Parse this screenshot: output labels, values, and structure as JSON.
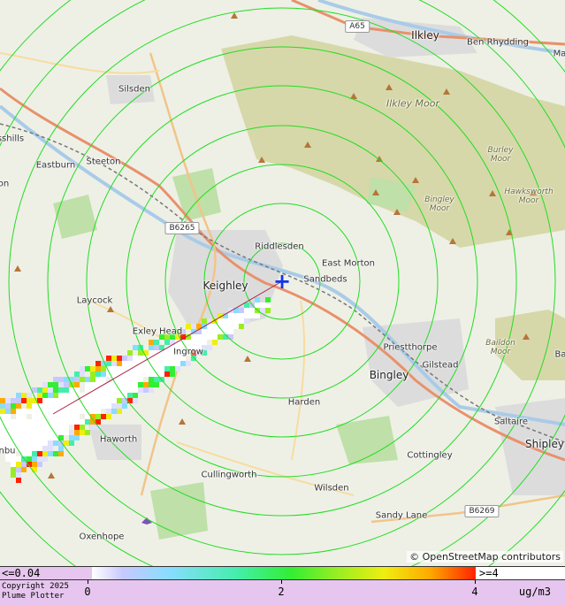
{
  "map": {
    "source_marker": "+",
    "places": [
      {
        "name": "Ilkley",
        "kind": "town"
      },
      {
        "name": "Ben Rhydding",
        "kind": "village"
      },
      {
        "name": "Silsden",
        "kind": "village"
      },
      {
        "name": "Eastburn",
        "kind": "village"
      },
      {
        "name": "Steeton",
        "kind": "village"
      },
      {
        "name": "Riddlesden",
        "kind": "village"
      },
      {
        "name": "East Morton",
        "kind": "village"
      },
      {
        "name": "Keighley",
        "kind": "town"
      },
      {
        "name": "Sandbeds",
        "kind": "village"
      },
      {
        "name": "Laycock",
        "kind": "village"
      },
      {
        "name": "Exley Head",
        "kind": "village"
      },
      {
        "name": "Ingrow",
        "kind": "village"
      },
      {
        "name": "Priestthorpe",
        "kind": "village"
      },
      {
        "name": "Gilstead",
        "kind": "village"
      },
      {
        "name": "Bingley",
        "kind": "town"
      },
      {
        "name": "Harden",
        "kind": "village"
      },
      {
        "name": "Haworth",
        "kind": "village"
      },
      {
        "name": "Saltaire",
        "kind": "village"
      },
      {
        "name": "Shipley",
        "kind": "town"
      },
      {
        "name": "Cottingley",
        "kind": "village"
      },
      {
        "name": "Cullingworth",
        "kind": "village"
      },
      {
        "name": "Wilsden",
        "kind": "village"
      },
      {
        "name": "Sandy Lane",
        "kind": "village"
      },
      {
        "name": "Oxenhope",
        "kind": "village"
      },
      {
        "name": "sshills",
        "kind": "village"
      },
      {
        "name": "Ma",
        "kind": "village"
      },
      {
        "name": "Ba",
        "kind": "village"
      },
      {
        "name": "on",
        "kind": "village"
      },
      {
        "name": "nbu",
        "kind": "village"
      }
    ],
    "moors": [
      {
        "name": "Ilkley Moor"
      },
      {
        "name": "Burley\nMoor"
      },
      {
        "name": "Hawksworth\nMoor"
      },
      {
        "name": "Bingley\nMoor"
      },
      {
        "name": "Baildon\nMoor"
      }
    ],
    "roads": [
      "A65",
      "B6265",
      "B6269"
    ],
    "attribution": "© OpenStreetMap contributors",
    "colors": {
      "ring": "#22dd22",
      "source": "#1133ee",
      "motorway": "#e8916b",
      "moorland": "#c9cc8a",
      "urban": "#d8d8d8",
      "plume_low": "#c8c8ff",
      "plume_mid": "#33ee33",
      "plume_high": "#ff2200"
    }
  },
  "legend": {
    "min_label": "<=0.04",
    "max_label": ">=4",
    "ticks": [
      "0",
      "2",
      "4"
    ],
    "units": "ug/m3",
    "copyright_line1": "Copyright 2025",
    "copyright_line2": "Plume Plotter"
  }
}
